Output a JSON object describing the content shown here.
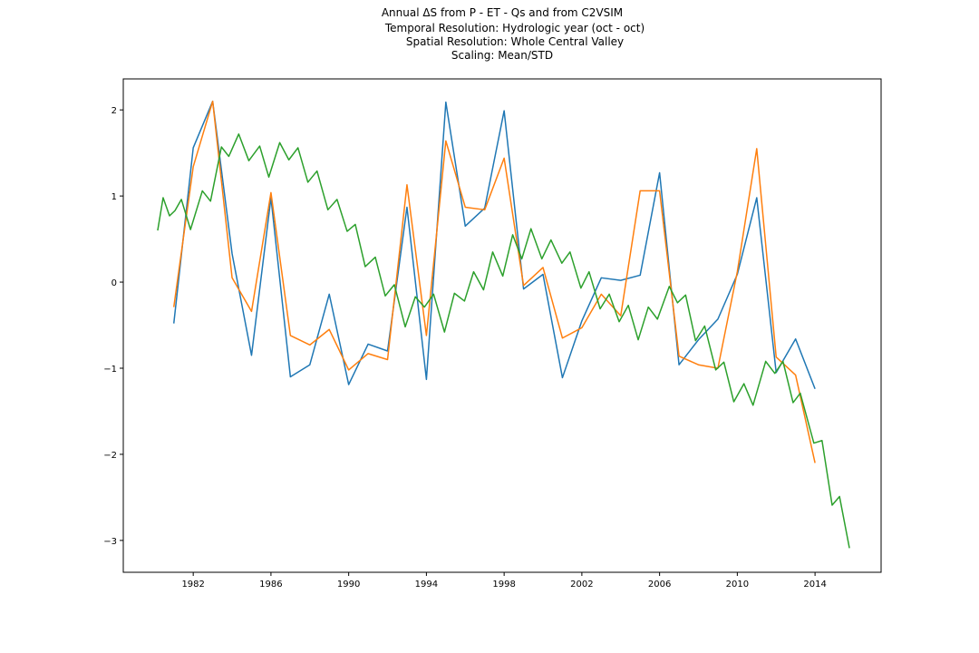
{
  "chart_data": {
    "type": "line",
    "title_lines": [
      "Annual ΔS from P - ET - Qs and from C2VSIM",
      "Temporal Resolution: Hydrologic year (oct - oct)",
      "Spatial Resolution: Whole Central Valley",
      "Scaling: Mean/STD"
    ],
    "xlim": [
      1978.4,
      2017.4
    ],
    "xticks": [
      1982,
      1986,
      1990,
      1994,
      1998,
      2002,
      2006,
      2010,
      2014
    ],
    "ylim": [
      -3.37,
      2.36
    ],
    "yticks": [
      {
        "value": -3,
        "label": "−3"
      },
      {
        "value": -2,
        "label": "−2"
      },
      {
        "value": -1,
        "label": "−1"
      },
      0,
      1,
      2
    ],
    "grid": false,
    "series": [
      {
        "color": "#1f77b4",
        "x": [
          1981,
          1982,
          1983,
          1984,
          1985,
          1986,
          1987,
          1988,
          1989,
          1990,
          1991,
          1992,
          1993,
          1994,
          1995,
          1996,
          1997,
          1998,
          1999,
          2000,
          2001,
          2002,
          2003,
          2004,
          2005,
          2006,
          2007,
          2008,
          2009,
          2010,
          2011,
          2012,
          2013,
          2014
        ],
        "values": [
          -0.48,
          1.56,
          2.1,
          0.33,
          -0.85,
          0.98,
          -1.1,
          -0.96,
          -0.14,
          -1.19,
          -0.72,
          -0.8,
          0.87,
          -1.13,
          2.09,
          0.65,
          0.86,
          1.99,
          -0.08,
          0.09,
          -1.11,
          -0.45,
          0.05,
          0.02,
          0.08,
          1.27,
          -0.96,
          -0.67,
          -0.43,
          0.09,
          0.98,
          -1.05,
          -0.66,
          -1.24
        ]
      },
      {
        "color": "#ff7f0e",
        "x": [
          1981,
          1982,
          1983,
          1984,
          1985,
          1986,
          1987,
          1988,
          1989,
          1990,
          1991,
          1992,
          1993,
          1994,
          1995,
          1996,
          1997,
          1998,
          1999,
          2000,
          2001,
          2002,
          2003,
          2004,
          2005,
          2006,
          2007,
          2008,
          2009,
          2010,
          2011,
          2012,
          2013,
          2014
        ],
        "values": [
          -0.29,
          1.34,
          2.1,
          0.05,
          -0.34,
          1.04,
          -0.62,
          -0.73,
          -0.55,
          -1.02,
          -0.83,
          -0.9,
          1.13,
          -0.62,
          1.64,
          0.87,
          0.84,
          1.44,
          -0.04,
          0.17,
          -0.65,
          -0.53,
          -0.14,
          -0.39,
          1.06,
          1.06,
          -0.86,
          -0.96,
          -1.0,
          0.12,
          1.55,
          -0.87,
          -1.08,
          -2.1
        ]
      },
      {
        "color": "#2ca02c",
        "x": [
          1980.17,
          1980.45,
          1980.78,
          1981.06,
          1981.39,
          1981.86,
          1982.47,
          1982.89,
          1983.45,
          1983.83,
          1984.34,
          1984.86,
          1985.42,
          1985.89,
          1986.45,
          1986.92,
          1987.39,
          1987.9,
          1988.37,
          1988.93,
          1989.4,
          1989.92,
          1990.34,
          1990.85,
          1991.37,
          1991.88,
          1992.35,
          1992.91,
          1993.43,
          1993.9,
          1994.37,
          1994.93,
          1995.44,
          1995.96,
          1996.43,
          1996.94,
          1997.41,
          1997.93,
          1998.44,
          1998.91,
          1999.38,
          1999.94,
          2000.41,
          2000.97,
          2001.39,
          2001.95,
          2002.37,
          2002.94,
          2003.41,
          2003.92,
          2004.39,
          2004.9,
          2005.42,
          2005.89,
          2006.5,
          2006.92,
          2007.34,
          2007.85,
          2008.32,
          2008.89,
          2009.31,
          2009.82,
          2010.34,
          2010.81,
          2011.46,
          2011.93,
          2012.35,
          2012.87,
          2013.24,
          2013.94,
          2014.36,
          2014.88,
          2015.26,
          2015.77
        ],
        "values": [
          0.6,
          0.98,
          0.77,
          0.83,
          0.96,
          0.61,
          1.06,
          0.94,
          1.57,
          1.46,
          1.72,
          1.41,
          1.58,
          1.22,
          1.62,
          1.42,
          1.56,
          1.16,
          1.29,
          0.84,
          0.96,
          0.59,
          0.67,
          0.18,
          0.29,
          -0.16,
          -0.03,
          -0.52,
          -0.17,
          -0.29,
          -0.14,
          -0.58,
          -0.13,
          -0.22,
          0.12,
          -0.09,
          0.35,
          0.07,
          0.55,
          0.27,
          0.62,
          0.27,
          0.49,
          0.22,
          0.35,
          -0.07,
          0.12,
          -0.31,
          -0.14,
          -0.46,
          -0.27,
          -0.67,
          -0.29,
          -0.43,
          -0.05,
          -0.24,
          -0.15,
          -0.68,
          -0.51,
          -1.02,
          -0.93,
          -1.39,
          -1.18,
          -1.43,
          -0.92,
          -1.06,
          -0.92,
          -1.4,
          -1.29,
          -1.87,
          -1.84,
          -2.59,
          -2.49,
          -3.09
        ]
      }
    ]
  }
}
